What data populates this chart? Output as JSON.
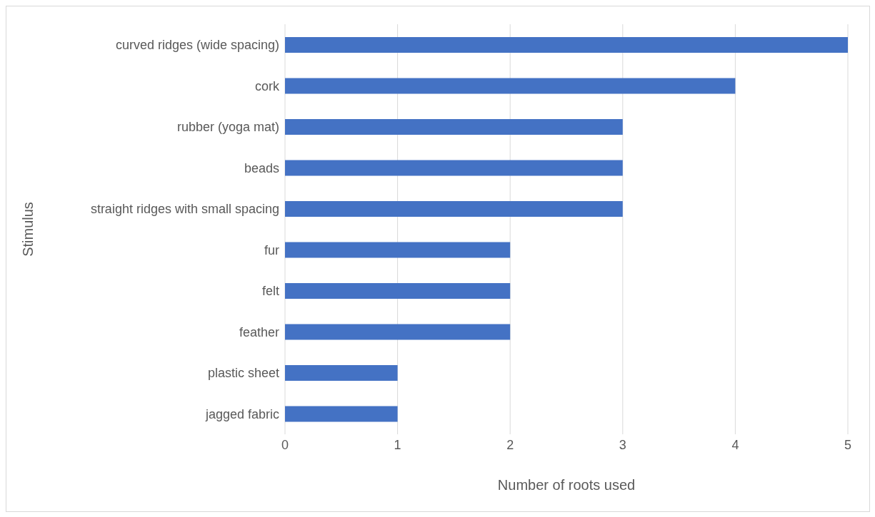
{
  "chart_data": {
    "type": "bar",
    "orientation": "horizontal",
    "xlabel": "Number of roots used",
    "ylabel": "Stimulus",
    "categories": [
      "curved ridges (wide spacing)",
      "cork",
      "rubber (yoga mat)",
      "beads",
      "straight ridges with small spacing",
      "fur",
      "felt",
      "feather",
      "plastic sheet",
      "jagged fabric"
    ],
    "values": [
      5,
      4,
      3,
      3,
      3,
      2,
      2,
      2,
      1,
      1
    ],
    "color": "#4472c4",
    "xlim": [
      0,
      5
    ],
    "xticks": [
      0,
      1,
      2,
      3,
      4,
      5
    ],
    "grid": "x"
  }
}
